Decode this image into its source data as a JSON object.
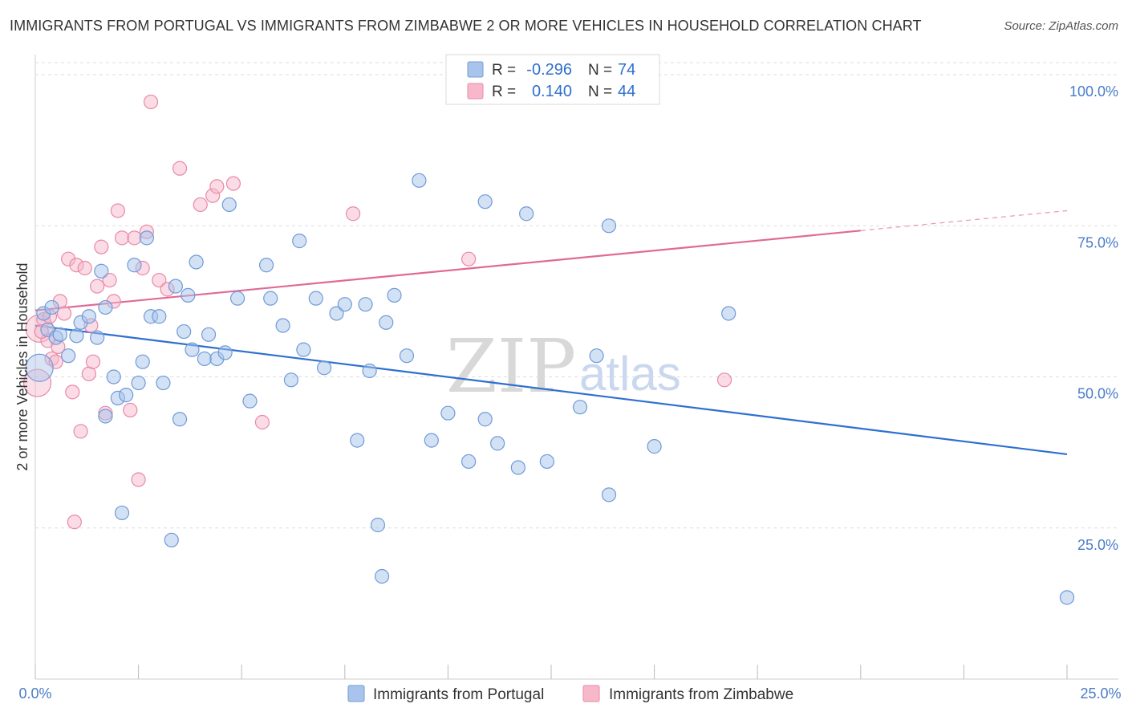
{
  "title": "IMMIGRANTS FROM PORTUGAL VS IMMIGRANTS FROM ZIMBABWE 2 OR MORE VEHICLES IN HOUSEHOLD CORRELATION CHART",
  "source": "Source: ZipAtlas.com",
  "watermark": {
    "zip": "ZIP",
    "atlas": "atlas"
  },
  "legend": {
    "r_label": "R =",
    "n_label": "N =",
    "rows": [
      {
        "r": "-0.296",
        "n": "74",
        "color": "#a8c4ec",
        "border": "#6f9bd8"
      },
      {
        "r": "0.140",
        "n": "44",
        "color": "#f7b8cb",
        "border": "#e88aa6"
      }
    ]
  },
  "chart_data": {
    "type": "scatter",
    "ylabel": "2 or more Vehicles in Household",
    "xlim": [
      0,
      25
    ],
    "ylim": [
      0,
      102
    ],
    "x_ticks": [
      "0.0%",
      "25.0%"
    ],
    "y_ticks": [
      {
        "value": 25,
        "label": "25.0%"
      },
      {
        "value": 50,
        "label": "50.0%"
      },
      {
        "value": 75,
        "label": "75.0%"
      },
      {
        "value": 100,
        "label": "100.0%"
      }
    ],
    "series": [
      {
        "name": "Immigrants from Portugal",
        "color": "#a8c4ec",
        "stroke": "#6f9bd8",
        "line_color": "#2f6fcf",
        "trend": {
          "x0": 0,
          "y0": 58.5,
          "x1": 25,
          "y1": 37.2
        },
        "points": [
          [
            0.1,
            51.5
          ],
          [
            0.2,
            60.5
          ],
          [
            0.3,
            57.8
          ],
          [
            0.4,
            61.5
          ],
          [
            0.5,
            56.5
          ],
          [
            0.6,
            57.0
          ],
          [
            0.8,
            53.5
          ],
          [
            1.0,
            56.8
          ],
          [
            1.1,
            59.0
          ],
          [
            1.3,
            60.0
          ],
          [
            1.5,
            56.5
          ],
          [
            1.6,
            67.5
          ],
          [
            1.7,
            61.5
          ],
          [
            1.7,
            43.5
          ],
          [
            1.9,
            50.0
          ],
          [
            2.0,
            46.5
          ],
          [
            2.1,
            27.5
          ],
          [
            2.2,
            47.0
          ],
          [
            2.4,
            68.5
          ],
          [
            2.5,
            49.0
          ],
          [
            2.6,
            52.5
          ],
          [
            2.7,
            73.0
          ],
          [
            2.8,
            60.0
          ],
          [
            3.0,
            60.0
          ],
          [
            3.1,
            49.0
          ],
          [
            3.3,
            23.0
          ],
          [
            3.4,
            65.0
          ],
          [
            3.5,
            43.0
          ],
          [
            3.6,
            57.5
          ],
          [
            3.7,
            63.5
          ],
          [
            3.8,
            54.5
          ],
          [
            3.9,
            69.0
          ],
          [
            4.1,
            53.0
          ],
          [
            4.2,
            57.0
          ],
          [
            4.4,
            53.0
          ],
          [
            4.6,
            54.0
          ],
          [
            4.7,
            78.5
          ],
          [
            4.9,
            63.0
          ],
          [
            5.2,
            46.0
          ],
          [
            5.6,
            68.5
          ],
          [
            5.7,
            63.0
          ],
          [
            6.0,
            58.5
          ],
          [
            6.2,
            49.5
          ],
          [
            6.4,
            72.5
          ],
          [
            6.5,
            54.5
          ],
          [
            6.8,
            63.0
          ],
          [
            7.0,
            51.5
          ],
          [
            7.3,
            60.5
          ],
          [
            7.5,
            62.0
          ],
          [
            7.8,
            39.5
          ],
          [
            8.0,
            62.0
          ],
          [
            8.1,
            51.0
          ],
          [
            8.3,
            25.5
          ],
          [
            8.4,
            17.0
          ],
          [
            8.5,
            59.0
          ],
          [
            8.7,
            63.5
          ],
          [
            9.0,
            53.5
          ],
          [
            9.3,
            82.5
          ],
          [
            9.6,
            39.5
          ],
          [
            10.0,
            44.0
          ],
          [
            10.5,
            36.0
          ],
          [
            10.9,
            43.0
          ],
          [
            10.9,
            79.0
          ],
          [
            11.2,
            39.0
          ],
          [
            11.7,
            35.0
          ],
          [
            11.9,
            77.0
          ],
          [
            12.4,
            36.0
          ],
          [
            13.2,
            45.0
          ],
          [
            13.6,
            53.5
          ],
          [
            13.9,
            30.5
          ],
          [
            13.9,
            75.0
          ],
          [
            15.0,
            38.5
          ],
          [
            16.8,
            60.5
          ],
          [
            25.0,
            13.5
          ]
        ]
      },
      {
        "name": "Immigrants from Zimbabwe",
        "color": "#f7b8cb",
        "stroke": "#e88aa6",
        "line_color": "#e06a95",
        "trend": {
          "x0": 0,
          "y0": 61.0,
          "x1": 20,
          "y1": 74.2,
          "dash_x1": 25,
          "dash_y1": 77.5
        },
        "points": [
          [
            0.05,
            49.0
          ],
          [
            0.1,
            58.0
          ],
          [
            0.2,
            59.5
          ],
          [
            0.3,
            56.0
          ],
          [
            0.4,
            53.0
          ],
          [
            0.5,
            52.5
          ],
          [
            0.6,
            62.5
          ],
          [
            0.7,
            60.5
          ],
          [
            0.8,
            69.5
          ],
          [
            0.9,
            47.5
          ],
          [
            1.0,
            68.5
          ],
          [
            1.1,
            41.0
          ],
          [
            1.2,
            68.0
          ],
          [
            1.3,
            50.5
          ],
          [
            1.4,
            52.5
          ],
          [
            1.5,
            65.0
          ],
          [
            1.6,
            71.5
          ],
          [
            1.7,
            44.0
          ],
          [
            1.8,
            66.0
          ],
          [
            1.9,
            62.5
          ],
          [
            2.0,
            77.5
          ],
          [
            2.1,
            73.0
          ],
          [
            2.3,
            44.5
          ],
          [
            2.4,
            73.0
          ],
          [
            2.5,
            33.0
          ],
          [
            2.6,
            68.0
          ],
          [
            2.7,
            74.0
          ],
          [
            2.8,
            95.5
          ],
          [
            3.0,
            66.0
          ],
          [
            3.2,
            64.5
          ],
          [
            3.5,
            84.5
          ],
          [
            4.0,
            78.5
          ],
          [
            4.3,
            80.0
          ],
          [
            4.4,
            81.5
          ],
          [
            4.8,
            82.0
          ],
          [
            5.5,
            42.5
          ],
          [
            7.7,
            77.0
          ],
          [
            10.5,
            69.5
          ],
          [
            16.7,
            49.5
          ],
          [
            0.15,
            57.5
          ],
          [
            0.35,
            60.0
          ],
          [
            0.55,
            55.0
          ],
          [
            1.35,
            58.5
          ],
          [
            0.95,
            26.0
          ]
        ]
      }
    ]
  }
}
